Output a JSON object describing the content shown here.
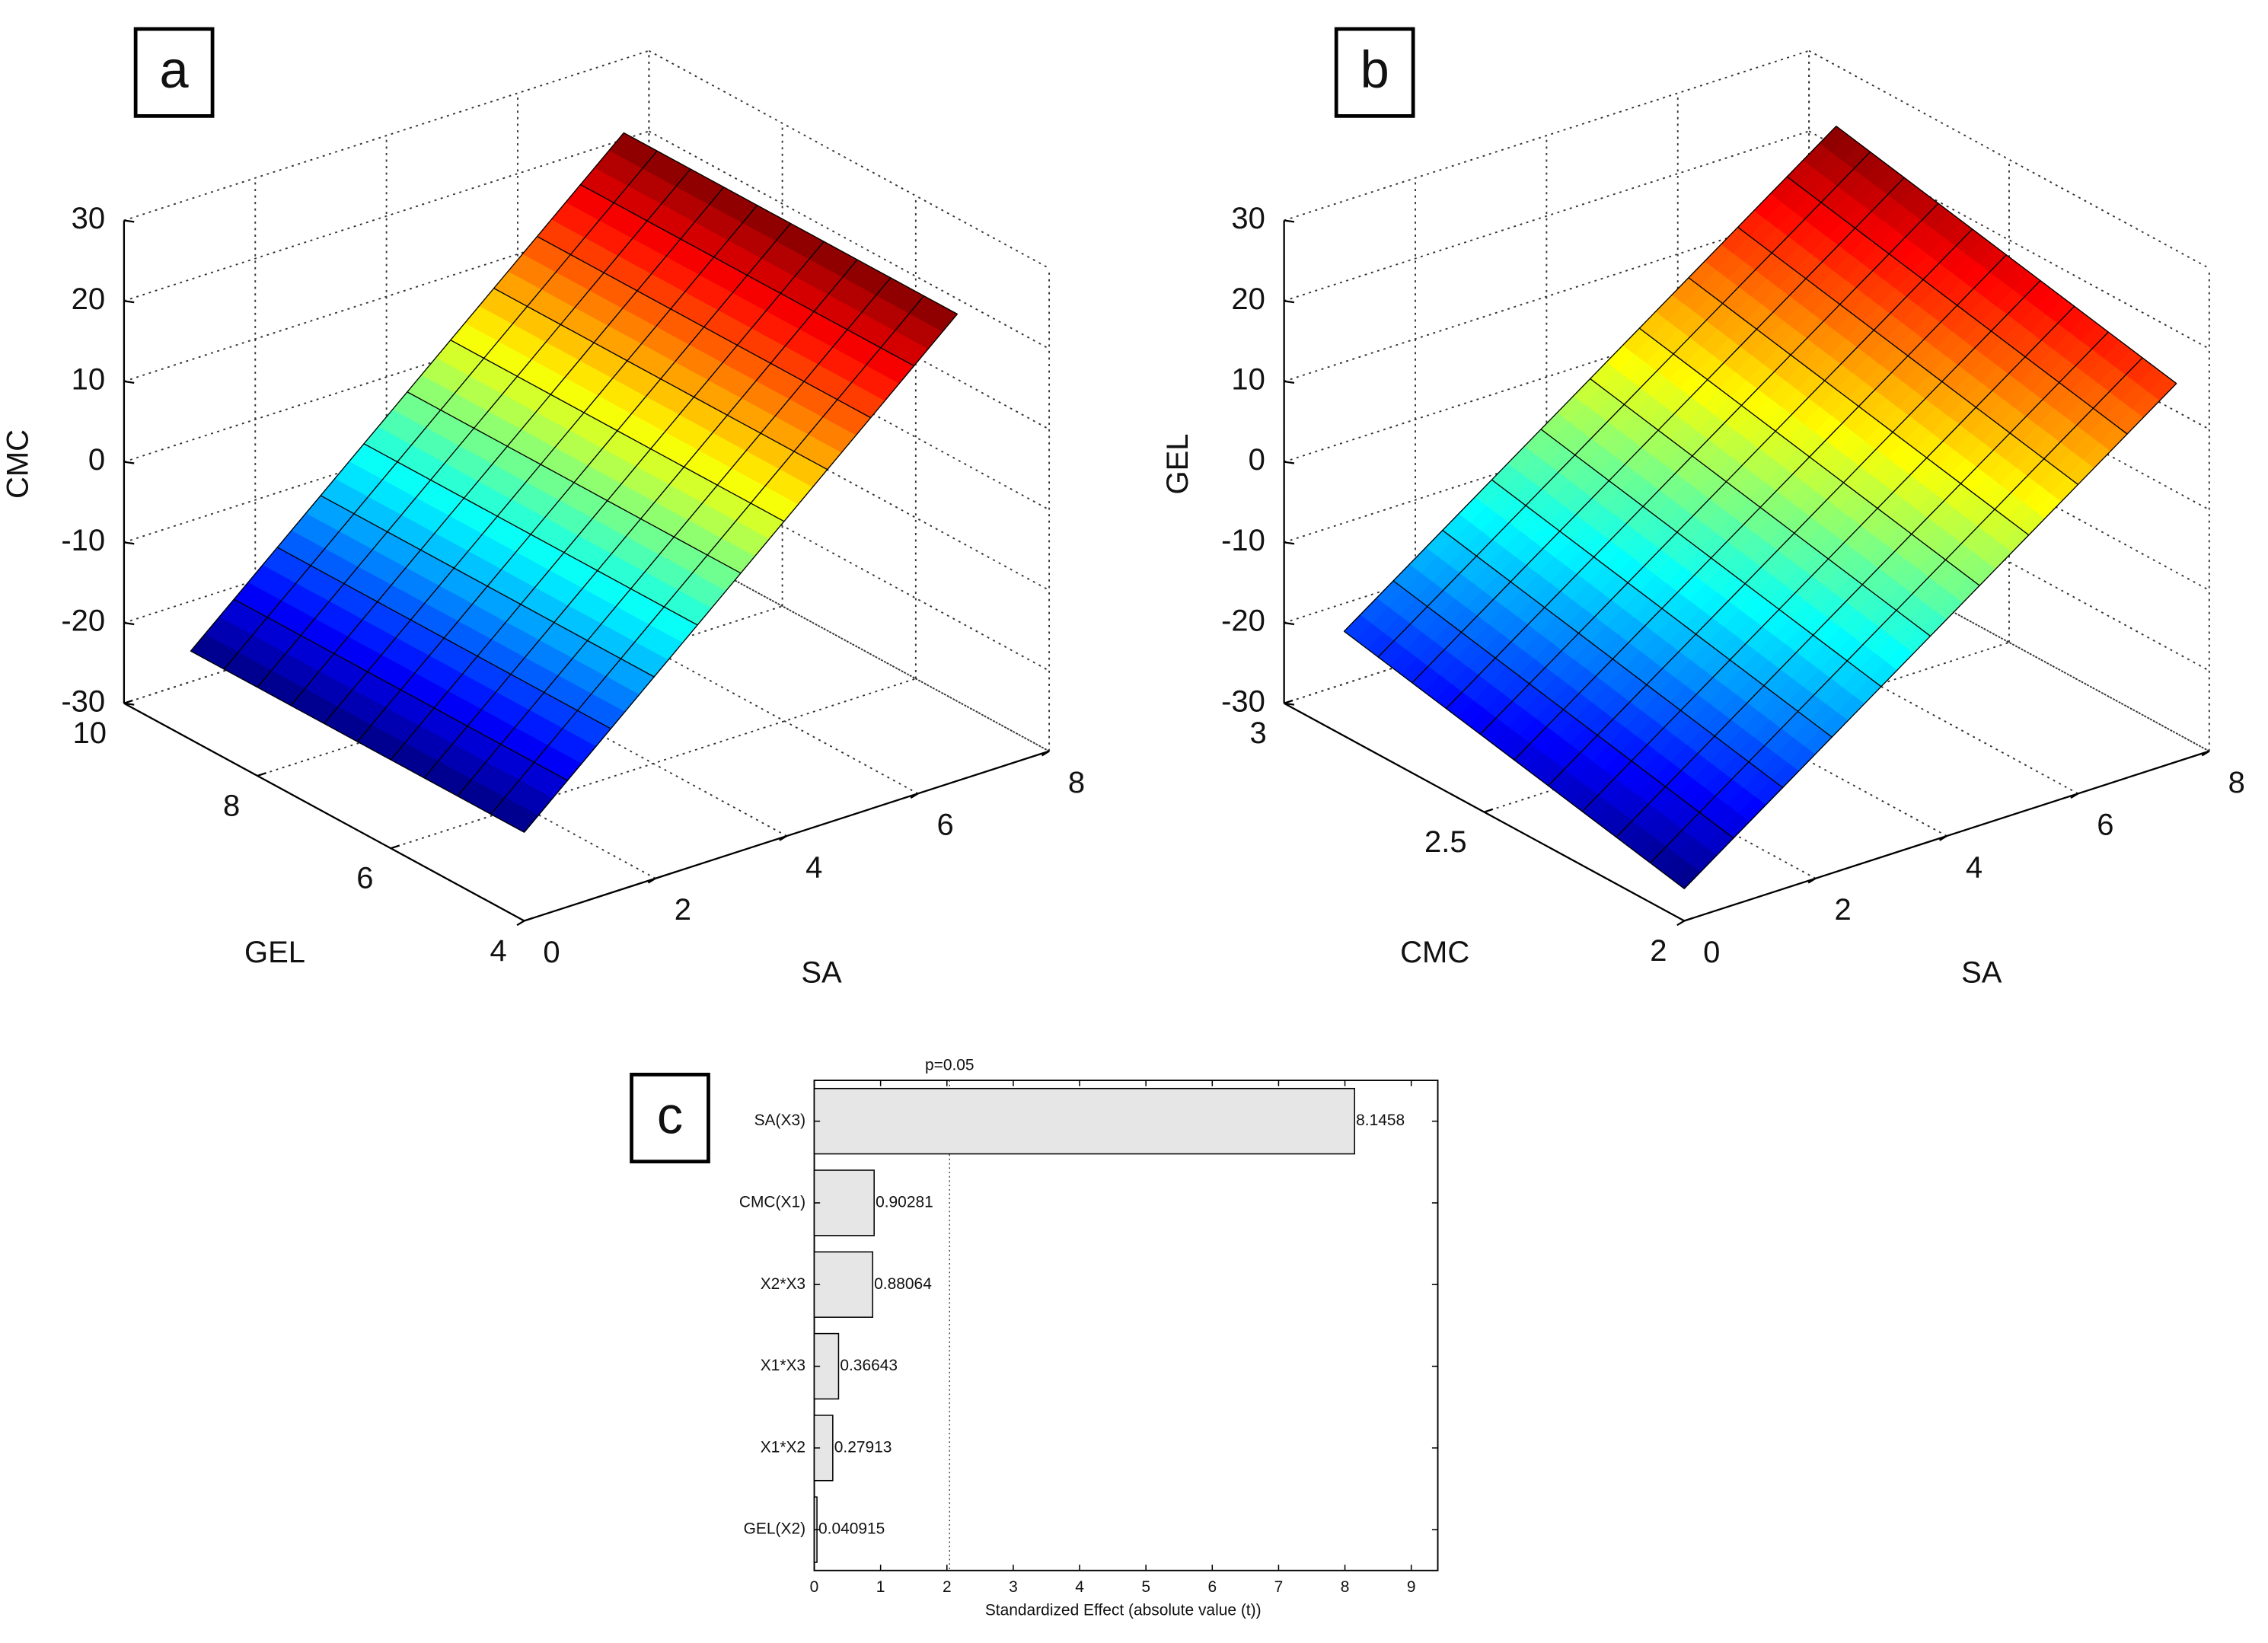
{
  "chart_data": [
    {
      "type": "surface",
      "panel": "a",
      "xlabel": "SA",
      "ylabel": "GEL",
      "zlabel": "CMC",
      "x": [
        0,
        6.6
      ],
      "y": [
        4,
        9
      ],
      "z": [
        [
          -19,
          28
        ],
        [
          -19,
          28
        ]
      ],
      "colormap": "jet",
      "xlim": [
        0,
        8
      ],
      "xticks": [
        0,
        2,
        4,
        6,
        8
      ],
      "ylim": [
        4,
        10
      ],
      "yticks": [
        4,
        6,
        8,
        10
      ],
      "zlim": [
        -30,
        30
      ],
      "zticks": [
        -30,
        -20,
        -10,
        0,
        10,
        20,
        30
      ],
      "grid": true
    },
    {
      "type": "surface",
      "panel": "b",
      "xlabel": "SA",
      "ylabel": "CMC",
      "zlabel": "GEL",
      "x": [
        0,
        7.5
      ],
      "y": [
        2,
        2.85
      ],
      "z": [
        [
          -26,
          17
        ],
        [
          -17,
          26
        ]
      ],
      "colormap": "jet",
      "xlim": [
        0,
        8
      ],
      "xticks": [
        0,
        2,
        4,
        6,
        8
      ],
      "ylim": [
        2,
        3
      ],
      "yticks": [
        2,
        2.5,
        3
      ],
      "zlim": [
        -30,
        30
      ],
      "zticks": [
        -30,
        -20,
        -10,
        0,
        10,
        20,
        30
      ],
      "grid": true
    },
    {
      "type": "barh",
      "panel": "c",
      "xlabel": "Standardized Effect (absolute value (t))",
      "categories": [
        "SA(X3)",
        "CMC(X1)",
        "X2*X3",
        "X1*X3",
        "X1*X2",
        "GEL(X2)"
      ],
      "values": [
        8.1458,
        0.90281,
        0.88064,
        0.36643,
        0.27913,
        0.040915
      ],
      "color": "#e6e6e6",
      "xlim": [
        0,
        9.4
      ],
      "xticks": [
        0,
        1,
        2,
        3,
        4,
        5,
        6,
        7,
        8,
        9
      ],
      "reference_line": {
        "value": 2.04,
        "label": "p=0.05"
      }
    }
  ]
}
